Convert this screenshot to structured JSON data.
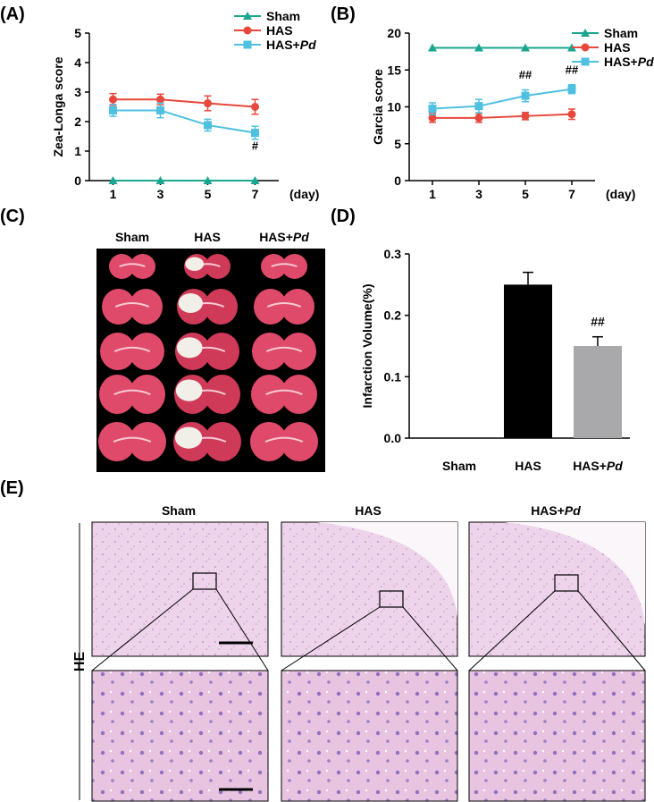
{
  "panels": {
    "a": "(A)",
    "b": "(B)",
    "c": "(C)",
    "d": "(D)",
    "e": "(E)"
  },
  "colors": {
    "sham": "#1aa68f",
    "has": "#e8473c",
    "hasPd": "#4fc0e0",
    "bar_has": "#000000",
    "bar_hasPd": "#a9a9ab",
    "tissue": "#e04a6a",
    "he_bg": "#e7c7e2"
  },
  "groups": {
    "sham": "Sham",
    "has": "HAS",
    "has_prefix": "HAS+",
    "has_suffix": "Pd"
  },
  "he_label": "HE",
  "chart_data": [
    {
      "type": "line",
      "panel": "A",
      "ylabel": "Zea-Longa score",
      "xlabel": "(day)",
      "x": [
        1,
        3,
        5,
        7
      ],
      "xlim": [
        0,
        8
      ],
      "ylim": [
        0,
        5
      ],
      "yticks": [
        0,
        1,
        2,
        3,
        4,
        5
      ],
      "legend": [
        "Sham",
        "HAS",
        "HAS+Pd"
      ],
      "legend_position": "top-right",
      "series": [
        {
          "name": "Sham",
          "values": [
            0,
            0,
            0,
            0
          ],
          "err": [
            0,
            0,
            0,
            0
          ],
          "marker": "triangle"
        },
        {
          "name": "HAS",
          "values": [
            2.75,
            2.75,
            2.62,
            2.5
          ],
          "err": [
            0.2,
            0.18,
            0.25,
            0.25
          ],
          "marker": "circle"
        },
        {
          "name": "HAS+Pd",
          "values": [
            2.38,
            2.38,
            1.88,
            1.62
          ],
          "err": [
            0.2,
            0.25,
            0.2,
            0.22
          ],
          "marker": "square"
        }
      ],
      "annotations": [
        {
          "x": 7,
          "y": 1.05,
          "text": "#"
        }
      ]
    },
    {
      "type": "line",
      "panel": "B",
      "ylabel": "Garcia score",
      "xlabel": "(day)",
      "x": [
        1,
        3,
        5,
        7
      ],
      "xlim": [
        0,
        8
      ],
      "ylim": [
        0,
        20
      ],
      "yticks": [
        0,
        5,
        10,
        15,
        20
      ],
      "legend": [
        "Sham",
        "HAS",
        "HAS+Pd"
      ],
      "legend_position": "top-right",
      "series": [
        {
          "name": "Sham",
          "values": [
            18,
            18,
            18,
            18
          ],
          "err": [
            0,
            0,
            0,
            0
          ],
          "marker": "triangle"
        },
        {
          "name": "HAS",
          "values": [
            8.5,
            8.5,
            8.75,
            9.0
          ],
          "err": [
            0.6,
            0.6,
            0.5,
            0.7
          ],
          "marker": "circle"
        },
        {
          "name": "HAS+Pd",
          "values": [
            9.75,
            10.1,
            11.5,
            12.4
          ],
          "err": [
            0.8,
            0.9,
            0.8,
            0.6
          ],
          "marker": "square"
        }
      ],
      "annotations": [
        {
          "x": 5,
          "y": 13.8,
          "text": "##"
        },
        {
          "x": 7,
          "y": 14.5,
          "text": "##"
        }
      ]
    },
    {
      "type": "bar",
      "panel": "D",
      "ylabel": "Infarction Volume(%)",
      "categories": [
        "Sham",
        "HAS",
        "HAS+Pd"
      ],
      "values": [
        0,
        0.25,
        0.15
      ],
      "err": [
        0,
        0.02,
        0.015
      ],
      "ylim": [
        0,
        0.3
      ],
      "yticks": [
        "0.0",
        "0.1",
        "0.2",
        "0.3"
      ],
      "annotations": [
        {
          "category": "HAS+Pd",
          "text": "##"
        }
      ]
    }
  ]
}
